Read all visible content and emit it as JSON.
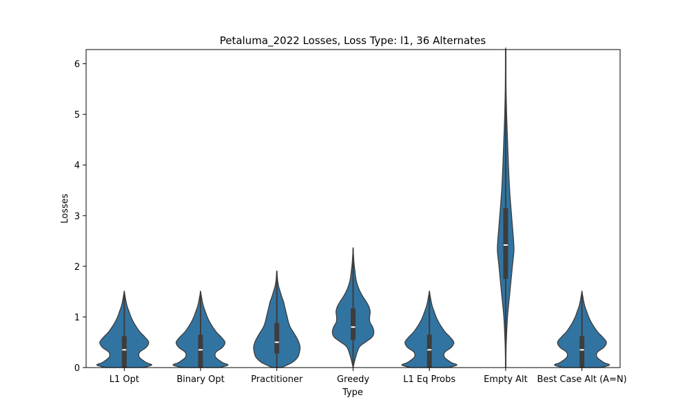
{
  "chart_data": {
    "type": "violin",
    "title": "Petaluma_2022 Losses, Loss Type: l1, 36 Alternates",
    "xlabel": "Type",
    "ylabel": "Losses",
    "ylim": [
      0,
      6.28
    ],
    "yticks": [
      0,
      1,
      2,
      3,
      4,
      5,
      6
    ],
    "grid": false,
    "colors": {
      "violin": "#3274a1",
      "outline": "#3b3b3b",
      "box": "#3d3d3d",
      "median": "#ffffff"
    },
    "categories": [
      "L1 Opt",
      "Binary Opt",
      "Practitioner",
      "Greedy",
      "L1 Eq Probs",
      "Empty Alt",
      "Best Case Alt (A=N)"
    ],
    "violins": [
      {
        "category": "L1 Opt",
        "min": 0,
        "max": 1.5,
        "q1": 0.0,
        "median": 0.35,
        "q3": 0.62,
        "profile": [
          [
            0,
            0.6
          ],
          [
            0.05,
            0.9
          ],
          [
            0.1,
            0.72
          ],
          [
            0.2,
            0.5
          ],
          [
            0.3,
            0.5
          ],
          [
            0.4,
            0.72
          ],
          [
            0.5,
            0.8
          ],
          [
            0.6,
            0.68
          ],
          [
            0.7,
            0.52
          ],
          [
            0.8,
            0.4
          ],
          [
            0.9,
            0.3
          ],
          [
            1.0,
            0.22
          ],
          [
            1.1,
            0.16
          ],
          [
            1.2,
            0.1
          ],
          [
            1.3,
            0.06
          ],
          [
            1.4,
            0.03
          ],
          [
            1.5,
            0
          ]
        ]
      },
      {
        "category": "Binary Opt",
        "min": 0,
        "max": 1.5,
        "q1": 0.0,
        "median": 0.35,
        "q3": 0.65,
        "profile": [
          [
            0,
            0.6
          ],
          [
            0.05,
            0.9
          ],
          [
            0.1,
            0.72
          ],
          [
            0.2,
            0.5
          ],
          [
            0.3,
            0.5
          ],
          [
            0.4,
            0.72
          ],
          [
            0.5,
            0.8
          ],
          [
            0.6,
            0.68
          ],
          [
            0.7,
            0.52
          ],
          [
            0.8,
            0.4
          ],
          [
            0.9,
            0.3
          ],
          [
            1.0,
            0.22
          ],
          [
            1.1,
            0.16
          ],
          [
            1.2,
            0.1
          ],
          [
            1.3,
            0.06
          ],
          [
            1.4,
            0.03
          ],
          [
            1.5,
            0
          ]
        ]
      },
      {
        "category": "Practitioner",
        "min": 0,
        "max": 1.9,
        "q1": 0.28,
        "median": 0.5,
        "q3": 0.88,
        "profile": [
          [
            0,
            0.15
          ],
          [
            0.1,
            0.5
          ],
          [
            0.2,
            0.68
          ],
          [
            0.3,
            0.74
          ],
          [
            0.4,
            0.76
          ],
          [
            0.5,
            0.72
          ],
          [
            0.6,
            0.64
          ],
          [
            0.7,
            0.54
          ],
          [
            0.8,
            0.44
          ],
          [
            0.9,
            0.38
          ],
          [
            1.0,
            0.34
          ],
          [
            1.1,
            0.3
          ],
          [
            1.2,
            0.26
          ],
          [
            1.3,
            0.22
          ],
          [
            1.4,
            0.16
          ],
          [
            1.5,
            0.11
          ],
          [
            1.6,
            0.06
          ],
          [
            1.7,
            0.03
          ],
          [
            1.8,
            0.015
          ],
          [
            1.9,
            0
          ]
        ]
      },
      {
        "category": "Greedy",
        "min": 0,
        "max": 2.35,
        "q1": 0.55,
        "median": 0.8,
        "q3": 1.17,
        "profile": [
          [
            0,
            0
          ],
          [
            0.2,
            0.08
          ],
          [
            0.4,
            0.2
          ],
          [
            0.5,
            0.4
          ],
          [
            0.6,
            0.62
          ],
          [
            0.7,
            0.68
          ],
          [
            0.8,
            0.64
          ],
          [
            0.9,
            0.55
          ],
          [
            1.0,
            0.54
          ],
          [
            1.1,
            0.56
          ],
          [
            1.2,
            0.52
          ],
          [
            1.3,
            0.43
          ],
          [
            1.4,
            0.32
          ],
          [
            1.5,
            0.23
          ],
          [
            1.6,
            0.16
          ],
          [
            1.7,
            0.11
          ],
          [
            1.8,
            0.08
          ],
          [
            1.9,
            0.06
          ],
          [
            2.0,
            0.04
          ],
          [
            2.1,
            0.025
          ],
          [
            2.2,
            0.015
          ],
          [
            2.35,
            0
          ]
        ]
      },
      {
        "category": "L1 Eq Probs",
        "min": 0,
        "max": 1.5,
        "q1": 0.0,
        "median": 0.35,
        "q3": 0.65,
        "profile": [
          [
            0,
            0.6
          ],
          [
            0.05,
            0.9
          ],
          [
            0.1,
            0.72
          ],
          [
            0.2,
            0.5
          ],
          [
            0.3,
            0.5
          ],
          [
            0.4,
            0.72
          ],
          [
            0.5,
            0.8
          ],
          [
            0.6,
            0.68
          ],
          [
            0.7,
            0.52
          ],
          [
            0.8,
            0.4
          ],
          [
            0.9,
            0.3
          ],
          [
            1.0,
            0.22
          ],
          [
            1.1,
            0.16
          ],
          [
            1.2,
            0.1
          ],
          [
            1.3,
            0.06
          ],
          [
            1.4,
            0.03
          ],
          [
            1.5,
            0
          ]
        ]
      },
      {
        "category": "Empty Alt",
        "min": 0,
        "max": 6.28,
        "q1": 1.75,
        "median": 2.42,
        "q3": 3.15,
        "profile": [
          [
            0,
            0
          ],
          [
            0.5,
            0.02
          ],
          [
            1.0,
            0.06
          ],
          [
            1.5,
            0.14
          ],
          [
            2.0,
            0.22
          ],
          [
            2.3,
            0.27
          ],
          [
            2.5,
            0.26
          ],
          [
            2.8,
            0.22
          ],
          [
            3.1,
            0.18
          ],
          [
            3.5,
            0.13
          ],
          [
            4.0,
            0.09
          ],
          [
            4.5,
            0.06
          ],
          [
            5.0,
            0.03
          ],
          [
            5.5,
            0.012
          ],
          [
            6.0,
            0.005
          ],
          [
            6.28,
            0
          ]
        ]
      },
      {
        "category": "Best Case Alt (A=N)",
        "min": 0,
        "max": 1.5,
        "q1": 0.0,
        "median": 0.35,
        "q3": 0.62,
        "profile": [
          [
            0,
            0.6
          ],
          [
            0.05,
            0.9
          ],
          [
            0.1,
            0.72
          ],
          [
            0.2,
            0.5
          ],
          [
            0.3,
            0.5
          ],
          [
            0.4,
            0.72
          ],
          [
            0.5,
            0.8
          ],
          [
            0.6,
            0.68
          ],
          [
            0.7,
            0.52
          ],
          [
            0.8,
            0.4
          ],
          [
            0.9,
            0.3
          ],
          [
            1.0,
            0.22
          ],
          [
            1.1,
            0.16
          ],
          [
            1.2,
            0.1
          ],
          [
            1.3,
            0.06
          ],
          [
            1.4,
            0.03
          ],
          [
            1.5,
            0
          ]
        ]
      }
    ]
  }
}
